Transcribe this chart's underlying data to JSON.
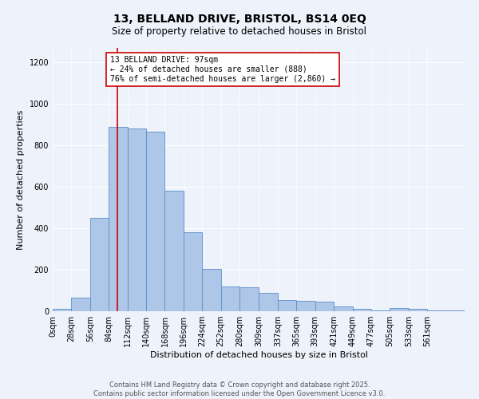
{
  "title_line1": "13, BELLAND DRIVE, BRISTOL, BS14 0EQ",
  "title_line2": "Size of property relative to detached houses in Bristol",
  "xlabel": "Distribution of detached houses by size in Bristol",
  "ylabel": "Number of detached properties",
  "bar_values": [
    10,
    65,
    450,
    890,
    880,
    865,
    580,
    380,
    205,
    120,
    115,
    90,
    55,
    50,
    45,
    25,
    12,
    5,
    15,
    10,
    3,
    2
  ],
  "bin_edges": [
    0,
    28,
    56,
    84,
    112,
    140,
    168,
    196,
    224,
    252,
    280,
    309,
    337,
    365,
    393,
    421,
    449,
    477,
    505,
    533,
    561,
    589
  ],
  "tick_labels": [
    "0sqm",
    "28sqm",
    "56sqm",
    "84sqm",
    "112sqm",
    "140sqm",
    "168sqm",
    "196sqm",
    "224sqm",
    "252sqm",
    "280sqm",
    "309sqm",
    "337sqm",
    "365sqm",
    "393sqm",
    "421sqm",
    "449sqm",
    "477sqm",
    "505sqm",
    "533sqm",
    "561sqm"
  ],
  "bar_color": "#aec6e8",
  "bar_edge_color": "#5b8fcc",
  "vline_x": 97,
  "vline_color": "#cc0000",
  "annotation_text": "13 BELLAND DRIVE: 97sqm\n← 24% of detached houses are smaller (888)\n76% of semi-detached houses are larger (2,860) →",
  "annotation_box_color": "#ffffff",
  "annotation_box_edge": "#cc0000",
  "ylim": [
    0,
    1270
  ],
  "yticks": [
    0,
    200,
    400,
    600,
    800,
    1000,
    1200
  ],
  "bg_color": "#eef2fa",
  "grid_color": "#ffffff",
  "footer_text": "Contains HM Land Registry data © Crown copyright and database right 2025.\nContains public sector information licensed under the Open Government Licence v3.0.",
  "title_fontsize": 10,
  "subtitle_fontsize": 8.5,
  "axis_label_fontsize": 8,
  "tick_fontsize": 7,
  "annotation_fontsize": 7,
  "footer_fontsize": 6
}
